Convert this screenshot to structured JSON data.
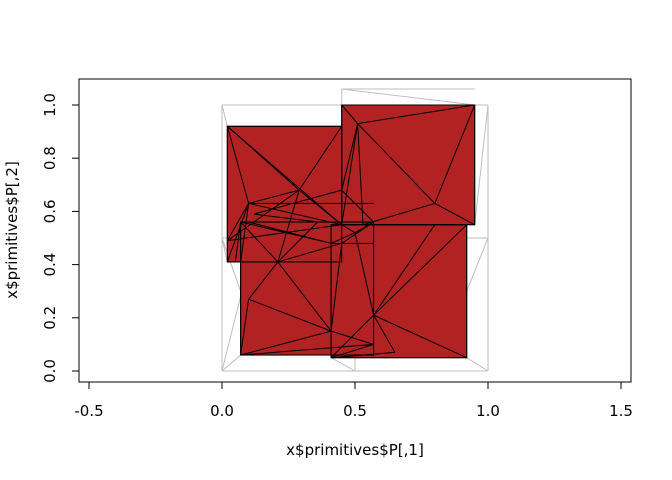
{
  "chart_data": {
    "type": "scatter",
    "subtype": "triangulated-polygon-plot",
    "title": "",
    "xlabel": "x$primitives$P[,1]",
    "ylabel": "x$primitives$P[,2]",
    "xlim": [
      -0.55,
      1.55
    ],
    "ylim": [
      -0.04,
      1.1
    ],
    "x_ticks": [
      -0.5,
      0.0,
      0.5,
      1.0,
      1.5
    ],
    "x_tick_labels": [
      "-0.5",
      "0.0",
      "0.5",
      "1.0",
      "1.5"
    ],
    "y_ticks": [
      0.0,
      0.2,
      0.4,
      0.6,
      0.8,
      1.0
    ],
    "y_tick_labels": [
      "0.0",
      "0.2",
      "0.4",
      "0.6",
      "0.8",
      "1.0"
    ],
    "colors": {
      "fill": "#b22222",
      "edge": "#000000",
      "grid_edge": "#bebebe"
    },
    "squares": [
      {
        "name": "square-top-left",
        "x": [
          0.02,
          0.45
        ],
        "y": [
          0.41,
          0.92
        ]
      },
      {
        "name": "square-top-right",
        "x": [
          0.45,
          0.95
        ],
        "y": [
          0.55,
          1.0
        ]
      },
      {
        "name": "square-bottom-left",
        "x": [
          0.07,
          0.57
        ],
        "y": [
          0.06,
          0.56
        ]
      },
      {
        "name": "square-bottom-right",
        "x": [
          0.41,
          0.92
        ],
        "y": [
          0.05,
          0.55
        ]
      }
    ],
    "grey_triangulation": [
      [
        0.0,
        0.0,
        0.0,
        1.0
      ],
      [
        0.0,
        1.0,
        0.5,
        1.0
      ],
      [
        0.5,
        1.0,
        1.0,
        1.0
      ],
      [
        1.0,
        1.0,
        1.0,
        0.0
      ],
      [
        1.0,
        0.0,
        0.0,
        0.0
      ],
      [
        0.0,
        0.5,
        1.0,
        0.5
      ],
      [
        0.5,
        0.0,
        0.5,
        1.0
      ],
      [
        0.45,
        1.06,
        0.95,
        1.06
      ],
      [
        0.45,
        1.06,
        0.45,
        0.55
      ],
      [
        0.0,
        1.0,
        0.02,
        0.92
      ],
      [
        0.0,
        0.0,
        0.07,
        0.06
      ],
      [
        1.0,
        0.0,
        0.92,
        0.05
      ],
      [
        1.0,
        1.0,
        0.95,
        1.0
      ],
      [
        0.45,
        1.06,
        0.95,
        1.0
      ],
      [
        1.0,
        0.5,
        0.92,
        0.3
      ],
      [
        0.0,
        0.5,
        0.07,
        0.3
      ],
      [
        0.0,
        0.0,
        0.07,
        0.28
      ],
      [
        1.0,
        1.0,
        0.95,
        0.55
      ],
      [
        0.5,
        0.0,
        0.41,
        0.05
      ],
      [
        0.0,
        0.5,
        0.02,
        0.41
      ]
    ],
    "triangulation_edges": [
      [
        0.02,
        0.92,
        0.29,
        0.68
      ],
      [
        0.02,
        0.92,
        0.1,
        0.63
      ],
      [
        0.02,
        0.92,
        0.45,
        0.55
      ],
      [
        0.02,
        0.49,
        0.29,
        0.68
      ],
      [
        0.02,
        0.49,
        0.1,
        0.63
      ],
      [
        0.1,
        0.63,
        0.29,
        0.68
      ],
      [
        0.29,
        0.68,
        0.45,
        0.92
      ],
      [
        0.29,
        0.68,
        0.45,
        0.55
      ],
      [
        0.29,
        0.68,
        0.21,
        0.41
      ],
      [
        0.1,
        0.63,
        0.45,
        0.55
      ],
      [
        0.02,
        0.41,
        0.1,
        0.63
      ],
      [
        0.45,
        1.0,
        0.51,
        0.93
      ],
      [
        0.51,
        0.93,
        0.95,
        1.0
      ],
      [
        0.51,
        0.93,
        0.8,
        0.63
      ],
      [
        0.8,
        0.63,
        0.95,
        1.0
      ],
      [
        0.8,
        0.63,
        0.95,
        0.55
      ],
      [
        0.51,
        0.93,
        0.45,
        0.55
      ],
      [
        0.51,
        0.93,
        0.53,
        0.55
      ],
      [
        0.45,
        0.68,
        0.51,
        0.93
      ],
      [
        0.8,
        0.63,
        0.53,
        0.55
      ],
      [
        0.45,
        0.55,
        0.92,
        0.55
      ],
      [
        0.07,
        0.56,
        0.21,
        0.41
      ],
      [
        0.07,
        0.06,
        0.1,
        0.27
      ],
      [
        0.1,
        0.27,
        0.21,
        0.41
      ],
      [
        0.1,
        0.27,
        0.41,
        0.15
      ],
      [
        0.21,
        0.41,
        0.41,
        0.15
      ],
      [
        0.07,
        0.06,
        0.41,
        0.15
      ],
      [
        0.41,
        0.15,
        0.45,
        0.48
      ],
      [
        0.21,
        0.41,
        0.45,
        0.48
      ],
      [
        0.07,
        0.41,
        0.21,
        0.41
      ],
      [
        0.21,
        0.41,
        0.36,
        0.56
      ],
      [
        0.07,
        0.06,
        0.57,
        0.1
      ],
      [
        0.41,
        0.15,
        0.57,
        0.1
      ],
      [
        0.45,
        0.48,
        0.57,
        0.56
      ],
      [
        0.41,
        0.05,
        0.57,
        0.21
      ],
      [
        0.57,
        0.21,
        0.92,
        0.05
      ],
      [
        0.57,
        0.21,
        0.92,
        0.55
      ],
      [
        0.57,
        0.21,
        0.65,
        0.07
      ],
      [
        0.41,
        0.05,
        0.65,
        0.07
      ],
      [
        0.57,
        0.21,
        0.8,
        0.55
      ],
      [
        0.41,
        0.05,
        0.57,
        0.1
      ],
      [
        0.5,
        0.52,
        0.57,
        0.21
      ],
      [
        0.41,
        0.48,
        0.57,
        0.48
      ],
      [
        0.45,
        0.55,
        0.5,
        0.52
      ],
      [
        0.5,
        0.52,
        0.57,
        0.56
      ],
      [
        0.41,
        0.48,
        0.5,
        0.52
      ],
      [
        0.02,
        0.49,
        0.45,
        0.55
      ],
      [
        0.1,
        0.56,
        0.41,
        0.48
      ],
      [
        0.12,
        0.59,
        0.36,
        0.56
      ],
      [
        0.12,
        0.59,
        0.45,
        0.68
      ],
      [
        0.45,
        0.68,
        0.57,
        0.56
      ],
      [
        0.1,
        0.63,
        0.57,
        0.63
      ],
      [
        0.05,
        0.41,
        0.07,
        0.56
      ],
      [
        0.07,
        0.56,
        0.41,
        0.48
      ],
      [
        0.1,
        0.63,
        0.07,
        0.41
      ]
    ]
  }
}
